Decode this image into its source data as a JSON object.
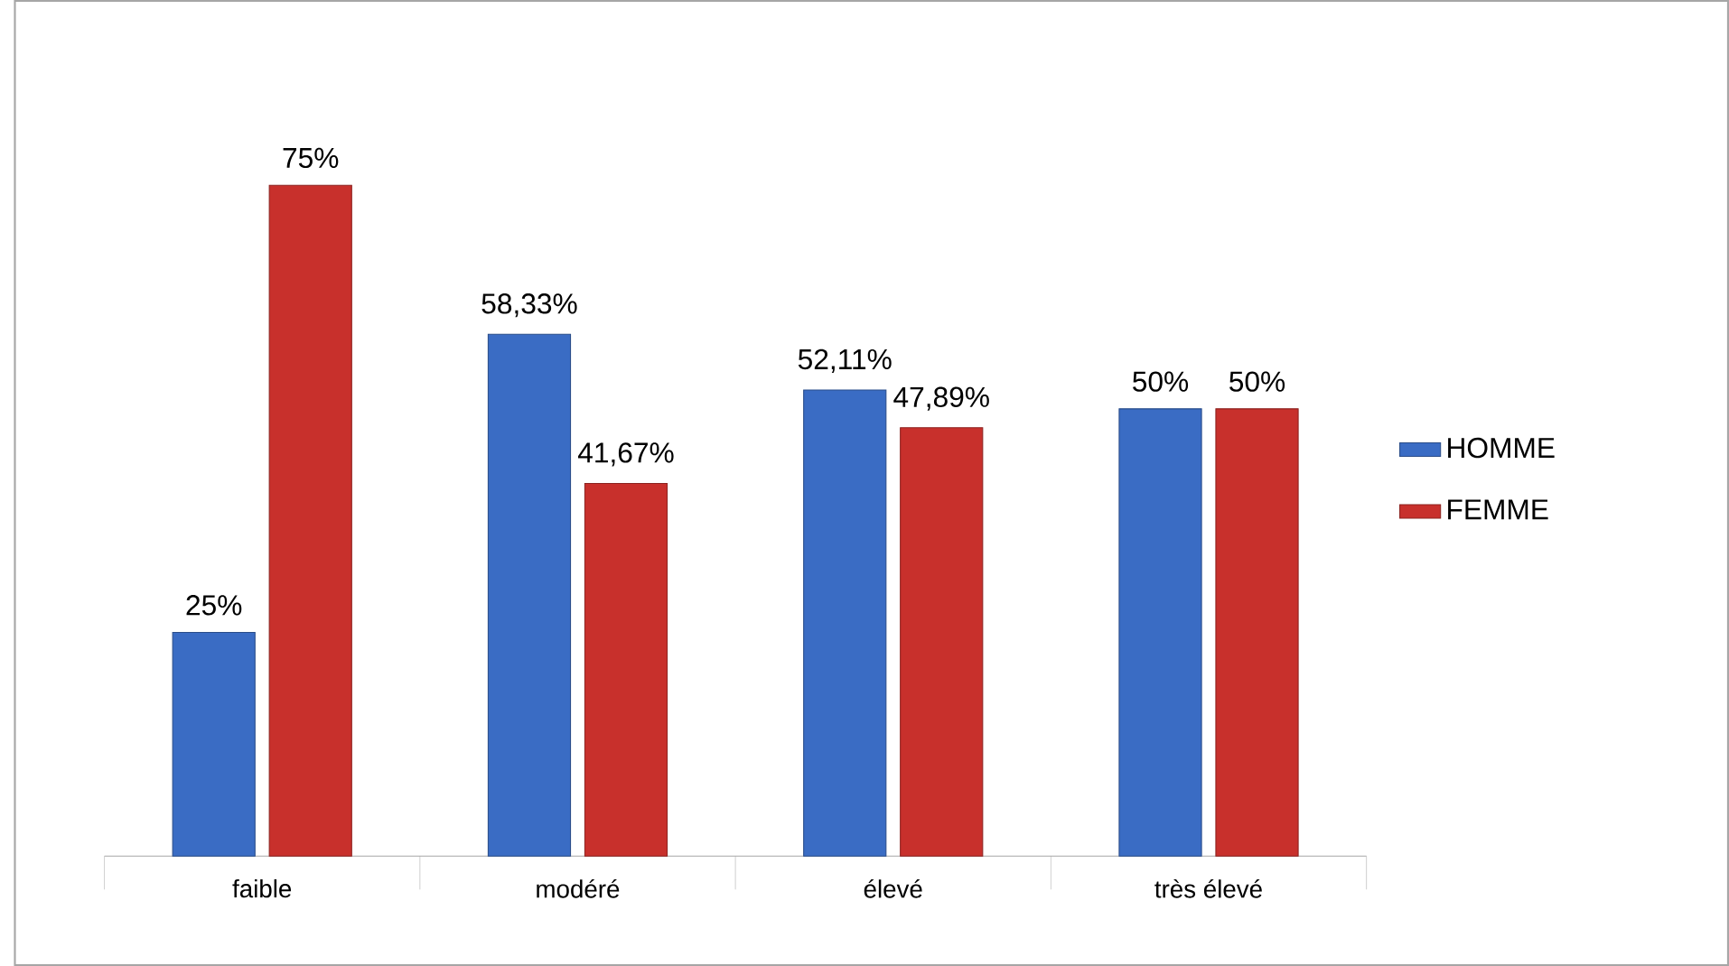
{
  "chart_data": {
    "type": "bar",
    "categories": [
      "faible",
      "modéré",
      "élevé",
      "très élevé"
    ],
    "series": [
      {
        "name": "HOMME",
        "color": "#3a6cc4",
        "values": [
          25,
          58.33,
          52.11,
          50
        ],
        "value_labels": [
          "25%",
          "58,33%",
          "52,11%",
          "50%"
        ]
      },
      {
        "name": "FEMME",
        "color": "#c8302c",
        "values": [
          75,
          41.67,
          47.89,
          50
        ],
        "value_labels": [
          "75%",
          "41,67%",
          "47,89%",
          "50%"
        ]
      }
    ],
    "legend": "right"
  }
}
